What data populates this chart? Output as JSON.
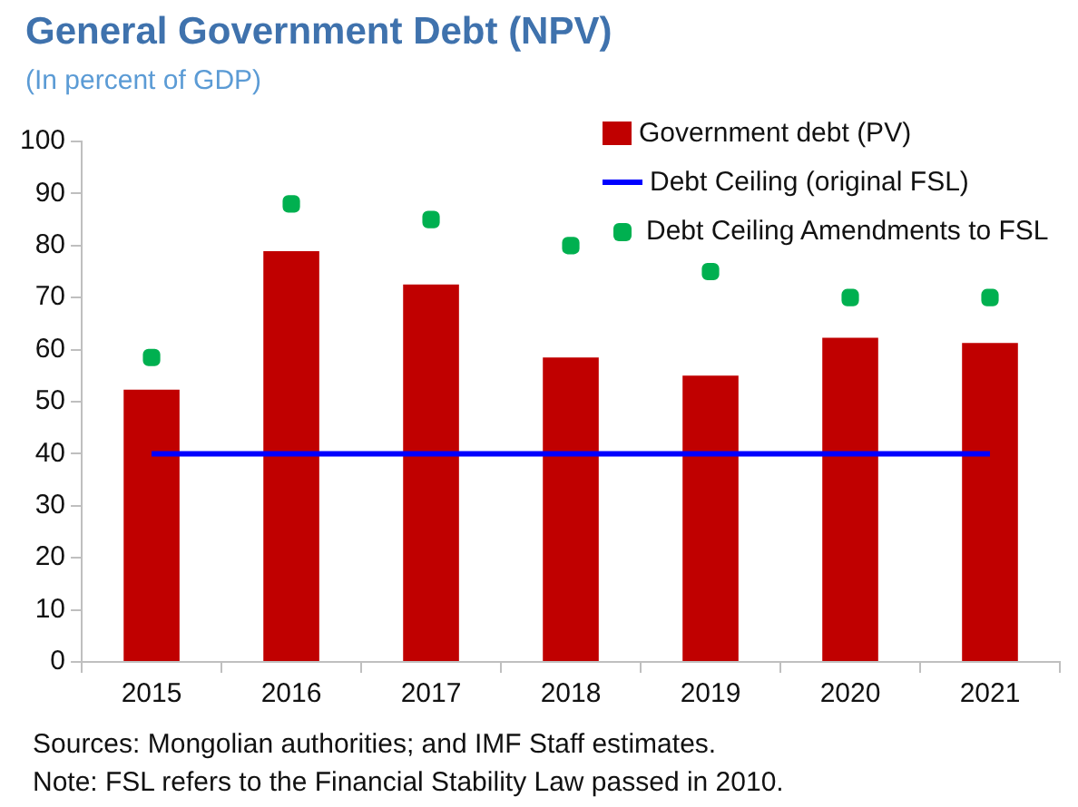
{
  "chart_data": {
    "type": "bar",
    "title": "General Government Debt (NPV)",
    "subtitle": "(In percent of GDP)",
    "categories": [
      "2015",
      "2016",
      "2017",
      "2018",
      "2019",
      "2020",
      "2021"
    ],
    "series": [
      {
        "name": "Government debt (PV)",
        "color": "#c00000",
        "values": [
          52.3,
          78.9,
          72.5,
          58.5,
          55.0,
          62.3,
          61.3
        ]
      },
      {
        "name": "Debt Ceiling (original FSL)",
        "type": "line",
        "color": "#0000ff",
        "values": [
          40,
          40,
          40,
          40,
          40,
          40,
          40
        ]
      },
      {
        "name": "Debt Ceiling Amendments to FSL",
        "type": "scatter",
        "marker": "square",
        "color": "#00b050",
        "values": [
          58.5,
          88,
          85,
          80,
          75,
          70,
          70
        ]
      }
    ],
    "ylim": [
      0,
      100
    ],
    "yticks": [
      0,
      10,
      20,
      30,
      40,
      50,
      60,
      70,
      80,
      90,
      100
    ],
    "grid": false,
    "legend": "top right",
    "annotations": [
      "Sources: Mongolian authorities; and IMF Staff estimates.",
      "Note: FSL refers to the Financial Stability Law passed in 2010."
    ]
  }
}
